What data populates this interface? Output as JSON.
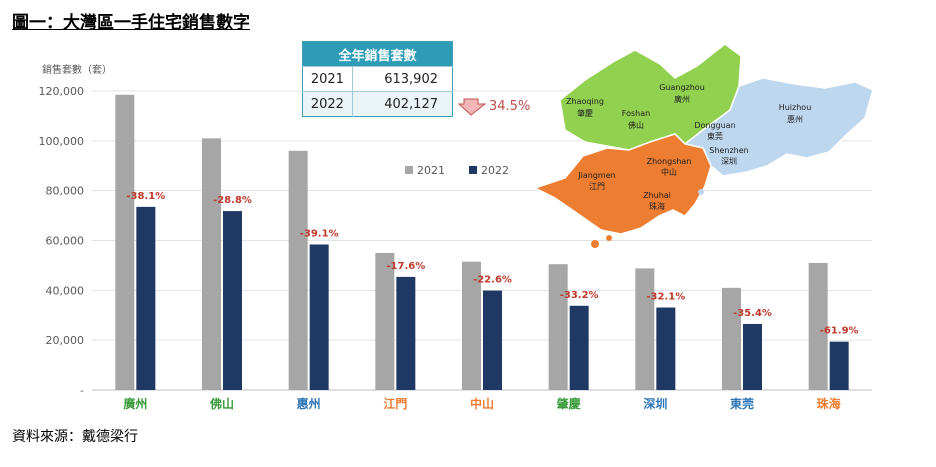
{
  "title": "圖一：大灣區一手住宅銷售數字",
  "source": "資料來源：戴德梁行",
  "summary_table": {
    "header": "全年銷售套數",
    "rows": [
      {
        "year": "2021",
        "value": "613,902"
      },
      {
        "year": "2022",
        "value": "402,127"
      }
    ],
    "change": "34.5%"
  },
  "chart_data": {
    "type": "bar",
    "ylabel": "銷售套數（套）",
    "ylim": [
      0,
      120000
    ],
    "yticks": [
      "-",
      "20,000",
      "40,000",
      "60,000",
      "80,000",
      "100,000",
      "120,000"
    ],
    "grid": true,
    "legend_position": "top-center",
    "categories": [
      "廣州",
      "佛山",
      "惠州",
      "江門",
      "中山",
      "肇慶",
      "深圳",
      "東莞",
      "珠海"
    ],
    "category_colors": [
      "#3a9b3c",
      "#3a9b3c",
      "#2e75b6",
      "#ed7d31",
      "#ed7d31",
      "#3a9b3c",
      "#2e75b6",
      "#2e75b6",
      "#ed7d31"
    ],
    "series": [
      {
        "name": "2021",
        "color": "#a6a6a6",
        "values": [
          118500,
          101000,
          96000,
          55000,
          51500,
          50500,
          48800,
          41000,
          51000
        ]
      },
      {
        "name": "2022",
        "color": "#1f3864",
        "values": [
          73500,
          71800,
          58400,
          45400,
          39900,
          33800,
          33100,
          26500,
          19400
        ]
      }
    ],
    "change_labels": [
      "-38.1%",
      "-28.8%",
      "-39.1%",
      "-17.6%",
      "-22.6%",
      "-33.2%",
      "-32.1%",
      "-35.4%",
      "-61.9%"
    ],
    "change_color": "#c0392b"
  },
  "map": {
    "colors": {
      "green": "#92d050",
      "orange": "#ed7d31",
      "blue": "#bdd7ee"
    },
    "regions": [
      {
        "en": "Zhaoqing",
        "zh": "肇慶"
      },
      {
        "en": "Foshan",
        "zh": "佛山"
      },
      {
        "en": "Guangzhou",
        "zh": "廣州"
      },
      {
        "en": "Huizhou",
        "zh": "惠州"
      },
      {
        "en": "Dongguan",
        "zh": "東莞"
      },
      {
        "en": "Shenzhen",
        "zh": "深圳"
      },
      {
        "en": "Jiangmen",
        "zh": "江門"
      },
      {
        "en": "Zhongshan",
        "zh": "中山"
      },
      {
        "en": "Zhuhai",
        "zh": "珠海"
      }
    ]
  }
}
